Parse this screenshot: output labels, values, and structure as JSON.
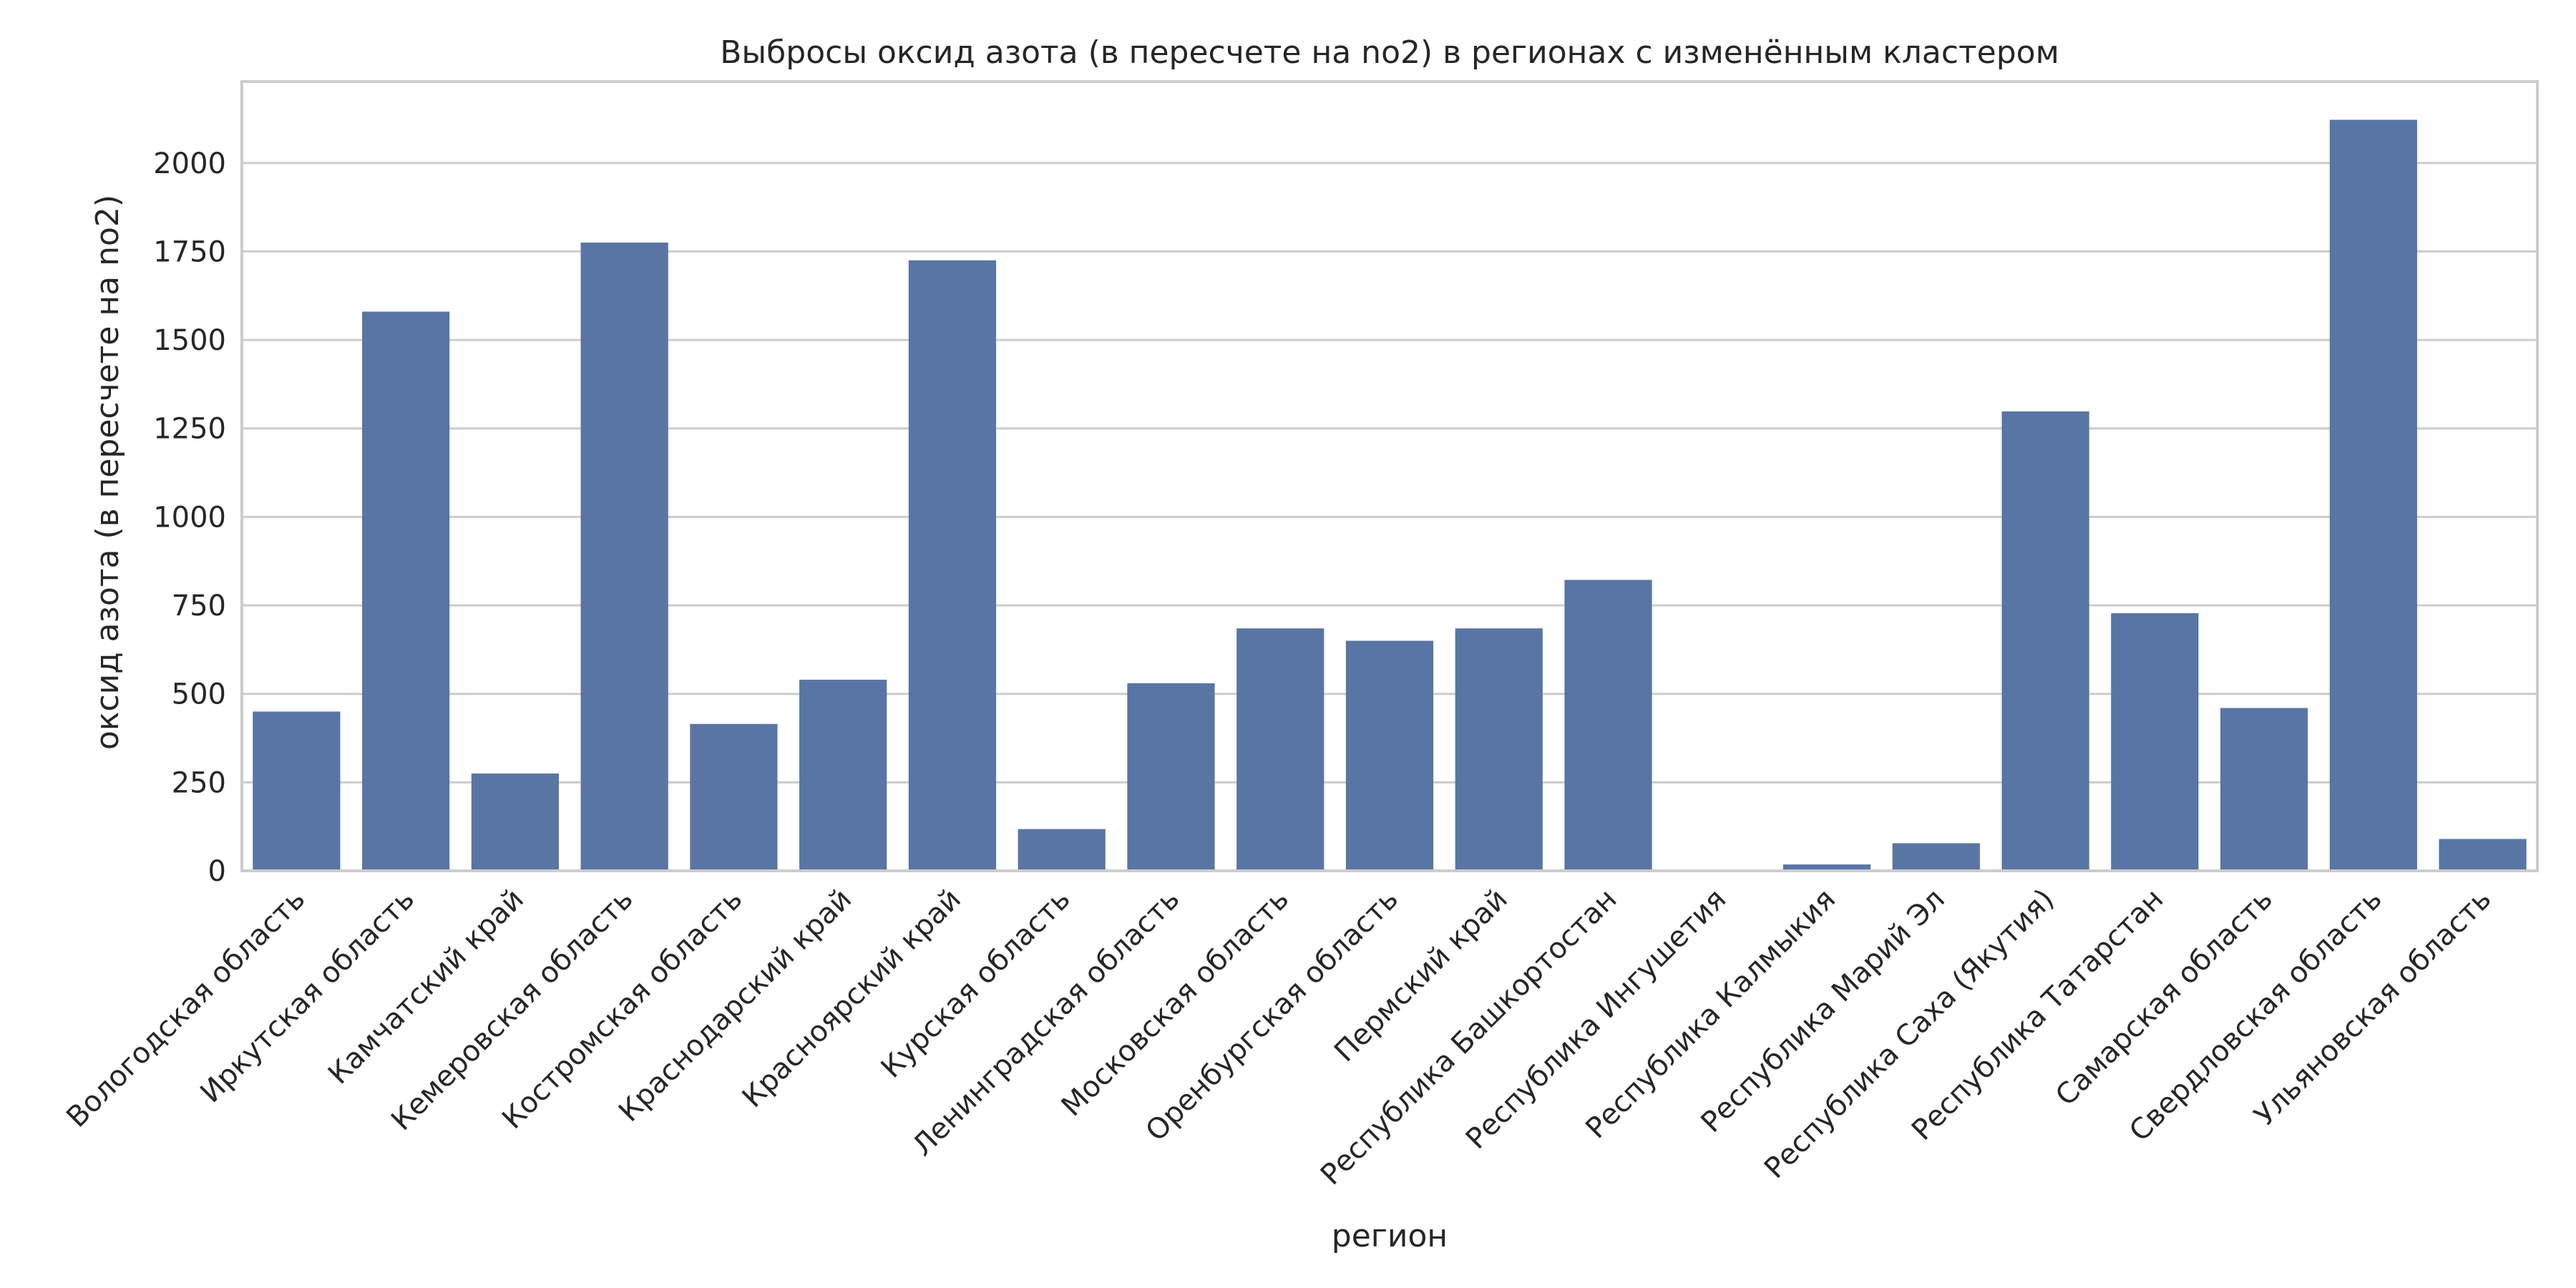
{
  "chart_data": {
    "type": "bar",
    "title": "Выбросы оксид азота (в пересчете на no2) в регионах с изменённым кластером",
    "xlabel": "регион",
    "ylabel": "оксид азота (в пересчете на no2)",
    "ylim": [
      0,
      2230
    ],
    "yticks": [
      0,
      250,
      500,
      750,
      1000,
      1250,
      1500,
      1750,
      2000
    ],
    "grid": "horizontal",
    "bar_color": "#5975a4",
    "categories": [
      "Вологодская область",
      "Иркутская область",
      "Камчатский край",
      "Кемеровская область",
      "Костромская область",
      "Краснодарский край",
      "Красноярский край",
      "Курская область",
      "Ленинградская область",
      "Московская область",
      "Оренбургская область",
      "Пермский край",
      "Республика Башкортостан",
      "Республика Ингушетия",
      "Республика Калмыкия",
      "Республика Марий Эл",
      "Республика Саха (Якутия)",
      "Республика Татарстан",
      "Самарская область",
      "Свердловская область",
      "Ульяновская область"
    ],
    "values": [
      450,
      1580,
      275,
      1775,
      415,
      540,
      1725,
      118,
      530,
      685,
      650,
      685,
      822,
      0,
      18,
      78,
      1298,
      728,
      460,
      2122,
      90
    ]
  }
}
